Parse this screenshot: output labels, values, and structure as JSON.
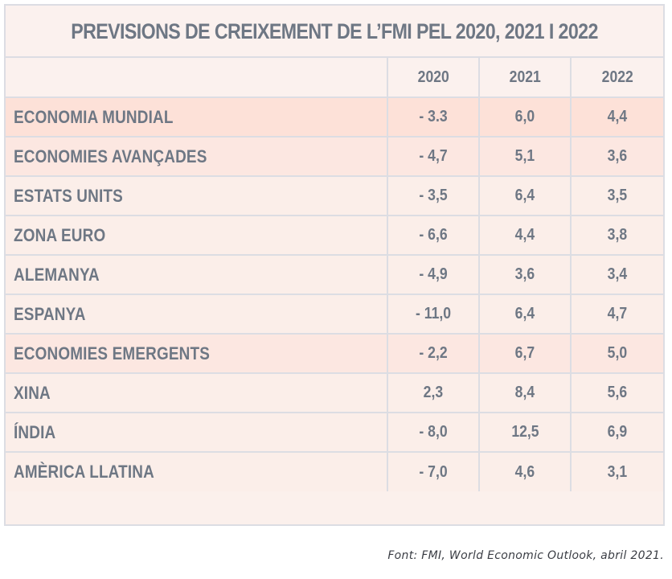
{
  "chart_data": {
    "type": "table",
    "title": "PREVISIONS DE CREIXEMENT DE L’FMI PEL 2020, 2021 I 2022",
    "columns": [
      "2020",
      "2021",
      "2022"
    ],
    "rows": [
      {
        "label": "ECONOMIA MUNDIAL",
        "values": [
          "- 3.3",
          "6,0",
          "4,4"
        ],
        "highlight": "strong"
      },
      {
        "label": "ECONOMIES AVANÇADES",
        "values": [
          "- 4,7",
          "5,1",
          "3,6"
        ],
        "highlight": "light"
      },
      {
        "label": "ESTATS UNITS",
        "values": [
          "- 3,5",
          "6,4",
          "3,5"
        ],
        "highlight": "none"
      },
      {
        "label": "ZONA EURO",
        "values": [
          "- 6,6",
          "4,4",
          "3,8"
        ],
        "highlight": "none"
      },
      {
        "label": "ALEMANYA",
        "values": [
          "- 4,9",
          "3,6",
          "3,4"
        ],
        "highlight": "none"
      },
      {
        "label": "ESPANYA",
        "values": [
          "- 11,0",
          "6,4",
          "4,7"
        ],
        "highlight": "none"
      },
      {
        "label": "ECONOMIES EMERGENTS",
        "values": [
          "- 2,2",
          "6,7",
          "5,0"
        ],
        "highlight": "light"
      },
      {
        "label": "XINA",
        "values": [
          "2,3",
          "8,4",
          "5,6"
        ],
        "highlight": "none"
      },
      {
        "label": "ÍNDIA",
        "values": [
          "- 8,0",
          "12,5",
          "6,9"
        ],
        "highlight": "none"
      },
      {
        "label": "AMÈRICA LLATINA",
        "values": [
          "- 7,0",
          "4,6",
          "3,1"
        ],
        "highlight": "none"
      }
    ],
    "source": "Font: FMI, World Economic Outlook, abril 2021."
  },
  "colors": {
    "text": "#6e7784",
    "border": "#dcdde3",
    "row_background": "#fbeee9",
    "highlight_strong": "#fde1d8",
    "highlight_light": "#fce7e1"
  }
}
